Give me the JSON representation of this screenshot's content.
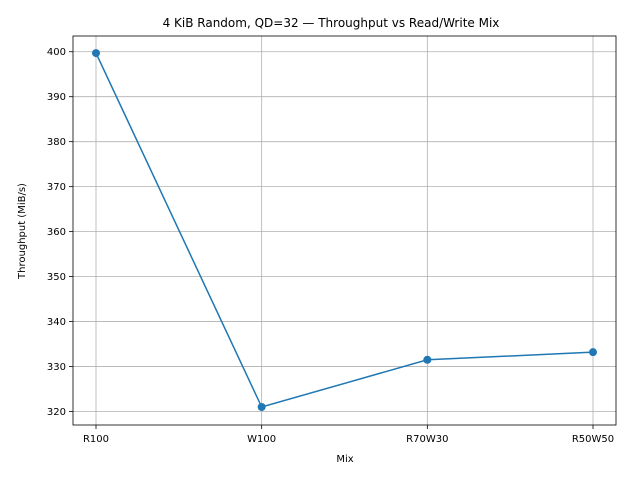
{
  "chart_data": {
    "type": "line",
    "title": "4 KiB Random, QD=32 — Throughput vs Read/Write Mix",
    "xlabel": "Mix",
    "ylabel": "Throughput (MiB/s)",
    "categories": [
      "R100",
      "W100",
      "R70W30",
      "R50W50"
    ],
    "series": [
      {
        "values": [
          399.7,
          321.0,
          331.5,
          333.2
        ],
        "color": "#1f77b4",
        "marker": "circle"
      }
    ],
    "ylim": [
      317,
      403.5
    ],
    "yticks": [
      320,
      330,
      340,
      350,
      360,
      370,
      380,
      390,
      400
    ],
    "grid": true
  }
}
